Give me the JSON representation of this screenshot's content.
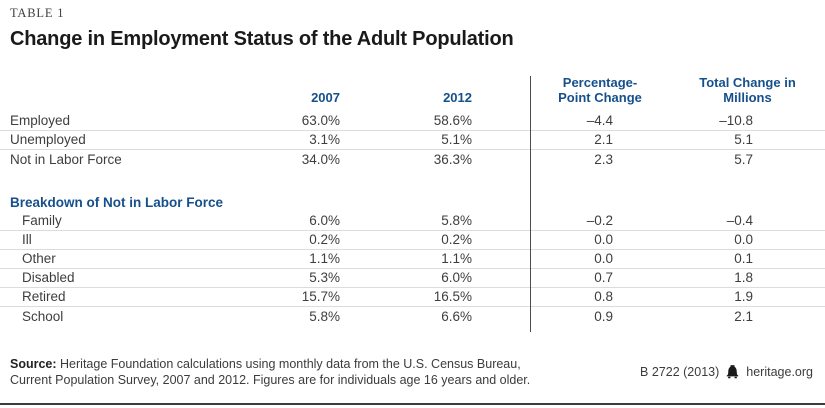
{
  "meta": {
    "table_label": "TABLE 1",
    "title": "Change in Employment Status of the Adult Population"
  },
  "colors": {
    "accent": "#16508c"
  },
  "table": {
    "columns": {
      "year1": "2007",
      "year2": "2012",
      "pp_change": "Percentage-Point Change",
      "total_change": "Total Change in Millions"
    },
    "rows": [
      {
        "type": "data",
        "label": "Employed",
        "y2007": "63.0%",
        "y2012": "58.6%",
        "pp": "–4.4",
        "total": "–10.8",
        "sep": true,
        "indent": false
      },
      {
        "type": "data",
        "label": "Unemployed",
        "y2007": "3.1%",
        "y2012": "5.1%",
        "pp": "2.1",
        "total": "5.1",
        "sep": true,
        "indent": false
      },
      {
        "type": "data",
        "label": "Not in Labor Force",
        "y2007": "34.0%",
        "y2012": "36.3%",
        "pp": "2.3",
        "total": "5.7",
        "sep": false,
        "indent": false
      },
      {
        "type": "spacer"
      },
      {
        "type": "section",
        "label": "Breakdown of Not in Labor Force"
      },
      {
        "type": "data",
        "label": "Family",
        "y2007": "6.0%",
        "y2012": "5.8%",
        "pp": "–0.2",
        "total": "–0.4",
        "sep": true,
        "indent": true
      },
      {
        "type": "data",
        "label": "Ill",
        "y2007": "0.2%",
        "y2012": "0.2%",
        "pp": "0.0",
        "total": "0.0",
        "sep": true,
        "indent": true
      },
      {
        "type": "data",
        "label": "Other",
        "y2007": "1.1%",
        "y2012": "1.1%",
        "pp": "0.0",
        "total": "0.1",
        "sep": true,
        "indent": true
      },
      {
        "type": "data",
        "label": "Disabled",
        "y2007": "5.3%",
        "y2012": "6.0%",
        "pp": "0.7",
        "total": "1.8",
        "sep": true,
        "indent": true
      },
      {
        "type": "data",
        "label": "Retired",
        "y2007": "15.7%",
        "y2012": "16.5%",
        "pp": "0.8",
        "total": "1.9",
        "sep": true,
        "indent": true
      },
      {
        "type": "data",
        "label": "School",
        "y2007": "5.8%",
        "y2012": "6.6%",
        "pp": "0.9",
        "total": "2.1",
        "sep": false,
        "indent": true
      }
    ]
  },
  "footer": {
    "source_bold": "Source:",
    "source_rest1": " Heritage Foundation calculations using monthly data from the U.S. Census Bureau,",
    "source_line2": "Current Population Survey, 2007 and 2012. Figures are for individuals age 16 years and older.",
    "code": "B 2722 (2013)",
    "bell_icon": "liberty-bell-icon",
    "site": "heritage.org"
  }
}
